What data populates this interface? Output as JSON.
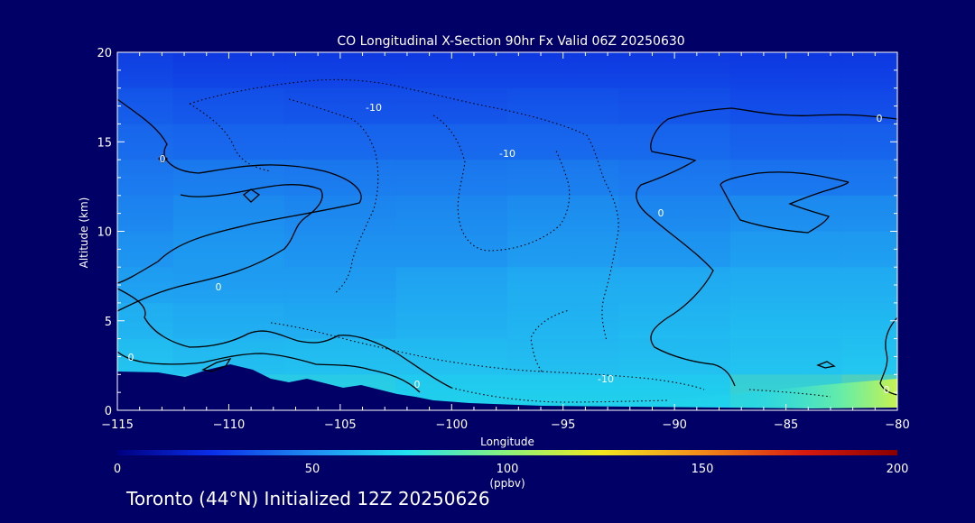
{
  "chart_data": {
    "type": "heatmap",
    "title": "CO Longitudinal X-Section 90hr  Fx Valid 06Z 20250630",
    "xlabel": "Longitude",
    "ylabel": "Altitude (km)",
    "xlim": [
      -115,
      -80
    ],
    "ylim": [
      0,
      20
    ],
    "x_ticks": [
      "−115",
      "−110",
      "−105",
      "−100",
      "−95",
      "−90",
      "−85",
      "−80"
    ],
    "y_ticks": [
      "0",
      "5",
      "10",
      "15",
      "20"
    ],
    "colorbar": {
      "label": "(ppbv)",
      "ticks": [
        "0",
        "50",
        "100",
        "150",
        "200"
      ],
      "range": [
        0,
        200
      ],
      "colors": [
        "#000080",
        "#0a2ee8",
        "#1f8cf2",
        "#22e0f0",
        "#8cf27a",
        "#f2e81f",
        "#f28a1a",
        "#d81a10",
        "#8a0000"
      ]
    },
    "contour_labels": [
      "0",
      "0",
      "0",
      "0",
      "0",
      "0",
      "0",
      "-10",
      "-10",
      "-10"
    ],
    "field": {
      "lon": [
        -115,
        -110,
        -105,
        -100,
        -95,
        -90,
        -85,
        -80
      ],
      "alt": [
        1,
        3,
        5,
        7,
        9,
        11,
        13,
        15,
        17,
        19
      ],
      "co_ppbv": [
        [
          85,
          80,
          80,
          75,
          75,
          75,
          90,
          105
        ],
        [
          72,
          68,
          70,
          70,
          68,
          70,
          72,
          75
        ],
        [
          68,
          64,
          62,
          66,
          70,
          72,
          75,
          75
        ],
        [
          62,
          60,
          60,
          66,
          72,
          72,
          74,
          74
        ],
        [
          58,
          62,
          58,
          58,
          64,
          60,
          66,
          66
        ],
        [
          54,
          60,
          56,
          58,
          62,
          56,
          60,
          60
        ],
        [
          50,
          54,
          52,
          52,
          54,
          50,
          48,
          48
        ],
        [
          46,
          44,
          44,
          44,
          44,
          44,
          40,
          40
        ],
        [
          42,
          38,
          36,
          36,
          38,
          36,
          32,
          32
        ],
        [
          36,
          32,
          32,
          32,
          32,
          32,
          30,
          30
        ]
      ]
    }
  },
  "footer": {
    "text": "Toronto (44°N) Initialized 12Z 20250626"
  }
}
